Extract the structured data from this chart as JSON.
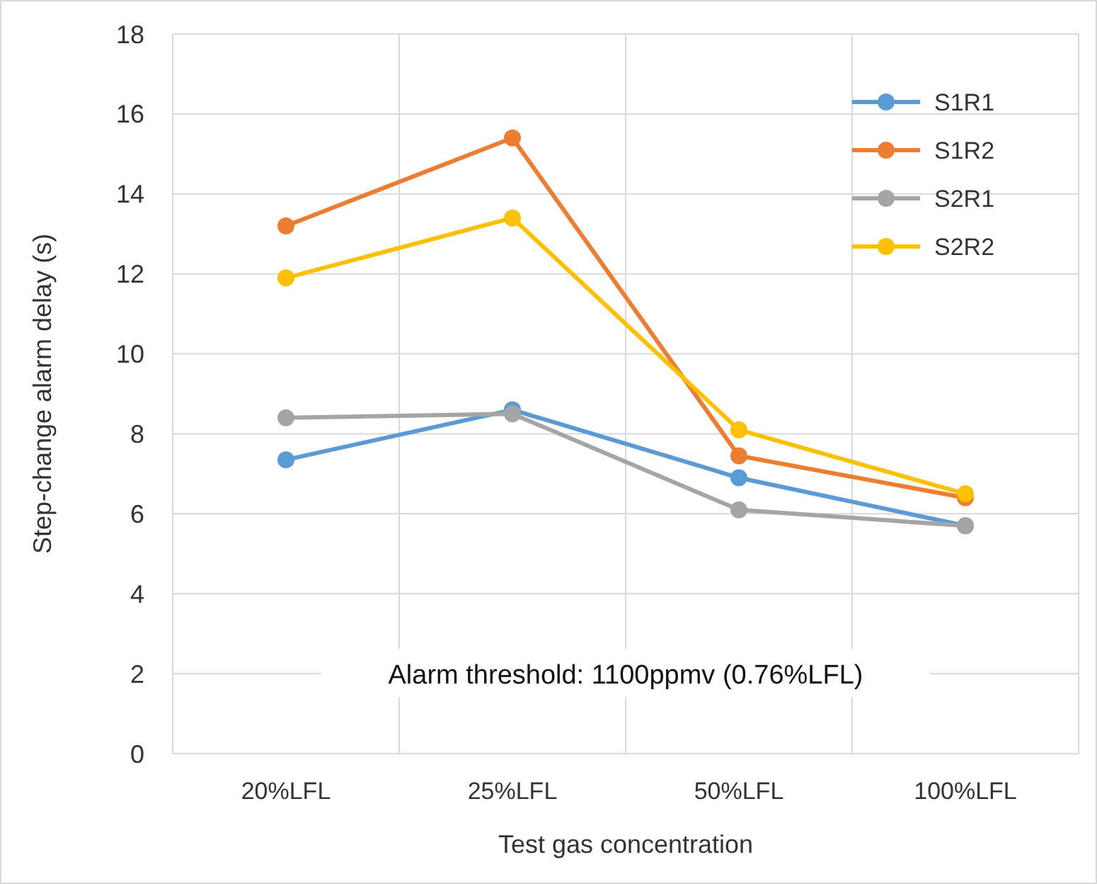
{
  "chart_data": {
    "type": "line",
    "xlabel": "Test gas concentration",
    "ylabel": "Step-change alarm delay (s)",
    "categories": [
      "20%LFL",
      "25%LFL",
      "50%LFL",
      "100%LFL"
    ],
    "series": [
      {
        "name": "S1R1",
        "color": "#5b9bd5",
        "values": [
          7.35,
          8.6,
          6.9,
          5.7
        ]
      },
      {
        "name": "S1R2",
        "color": "#ed7d31",
        "values": [
          13.2,
          15.4,
          7.45,
          6.4
        ]
      },
      {
        "name": "S2R1",
        "color": "#a5a5a5",
        "values": [
          8.4,
          8.5,
          6.1,
          5.7
        ]
      },
      {
        "name": "S2R2",
        "color": "#ffc000",
        "values": [
          11.9,
          13.4,
          8.1,
          6.5
        ]
      }
    ],
    "ylim": [
      0,
      18
    ],
    "yticks": [
      0,
      2,
      4,
      6,
      8,
      10,
      12,
      14,
      16,
      18
    ],
    "grid": true,
    "legend": "top right",
    "marker": "circle",
    "line_style": "solid",
    "annotations": [
      "Alarm threshold: 1100ppmv (0.76%LFL)"
    ]
  }
}
